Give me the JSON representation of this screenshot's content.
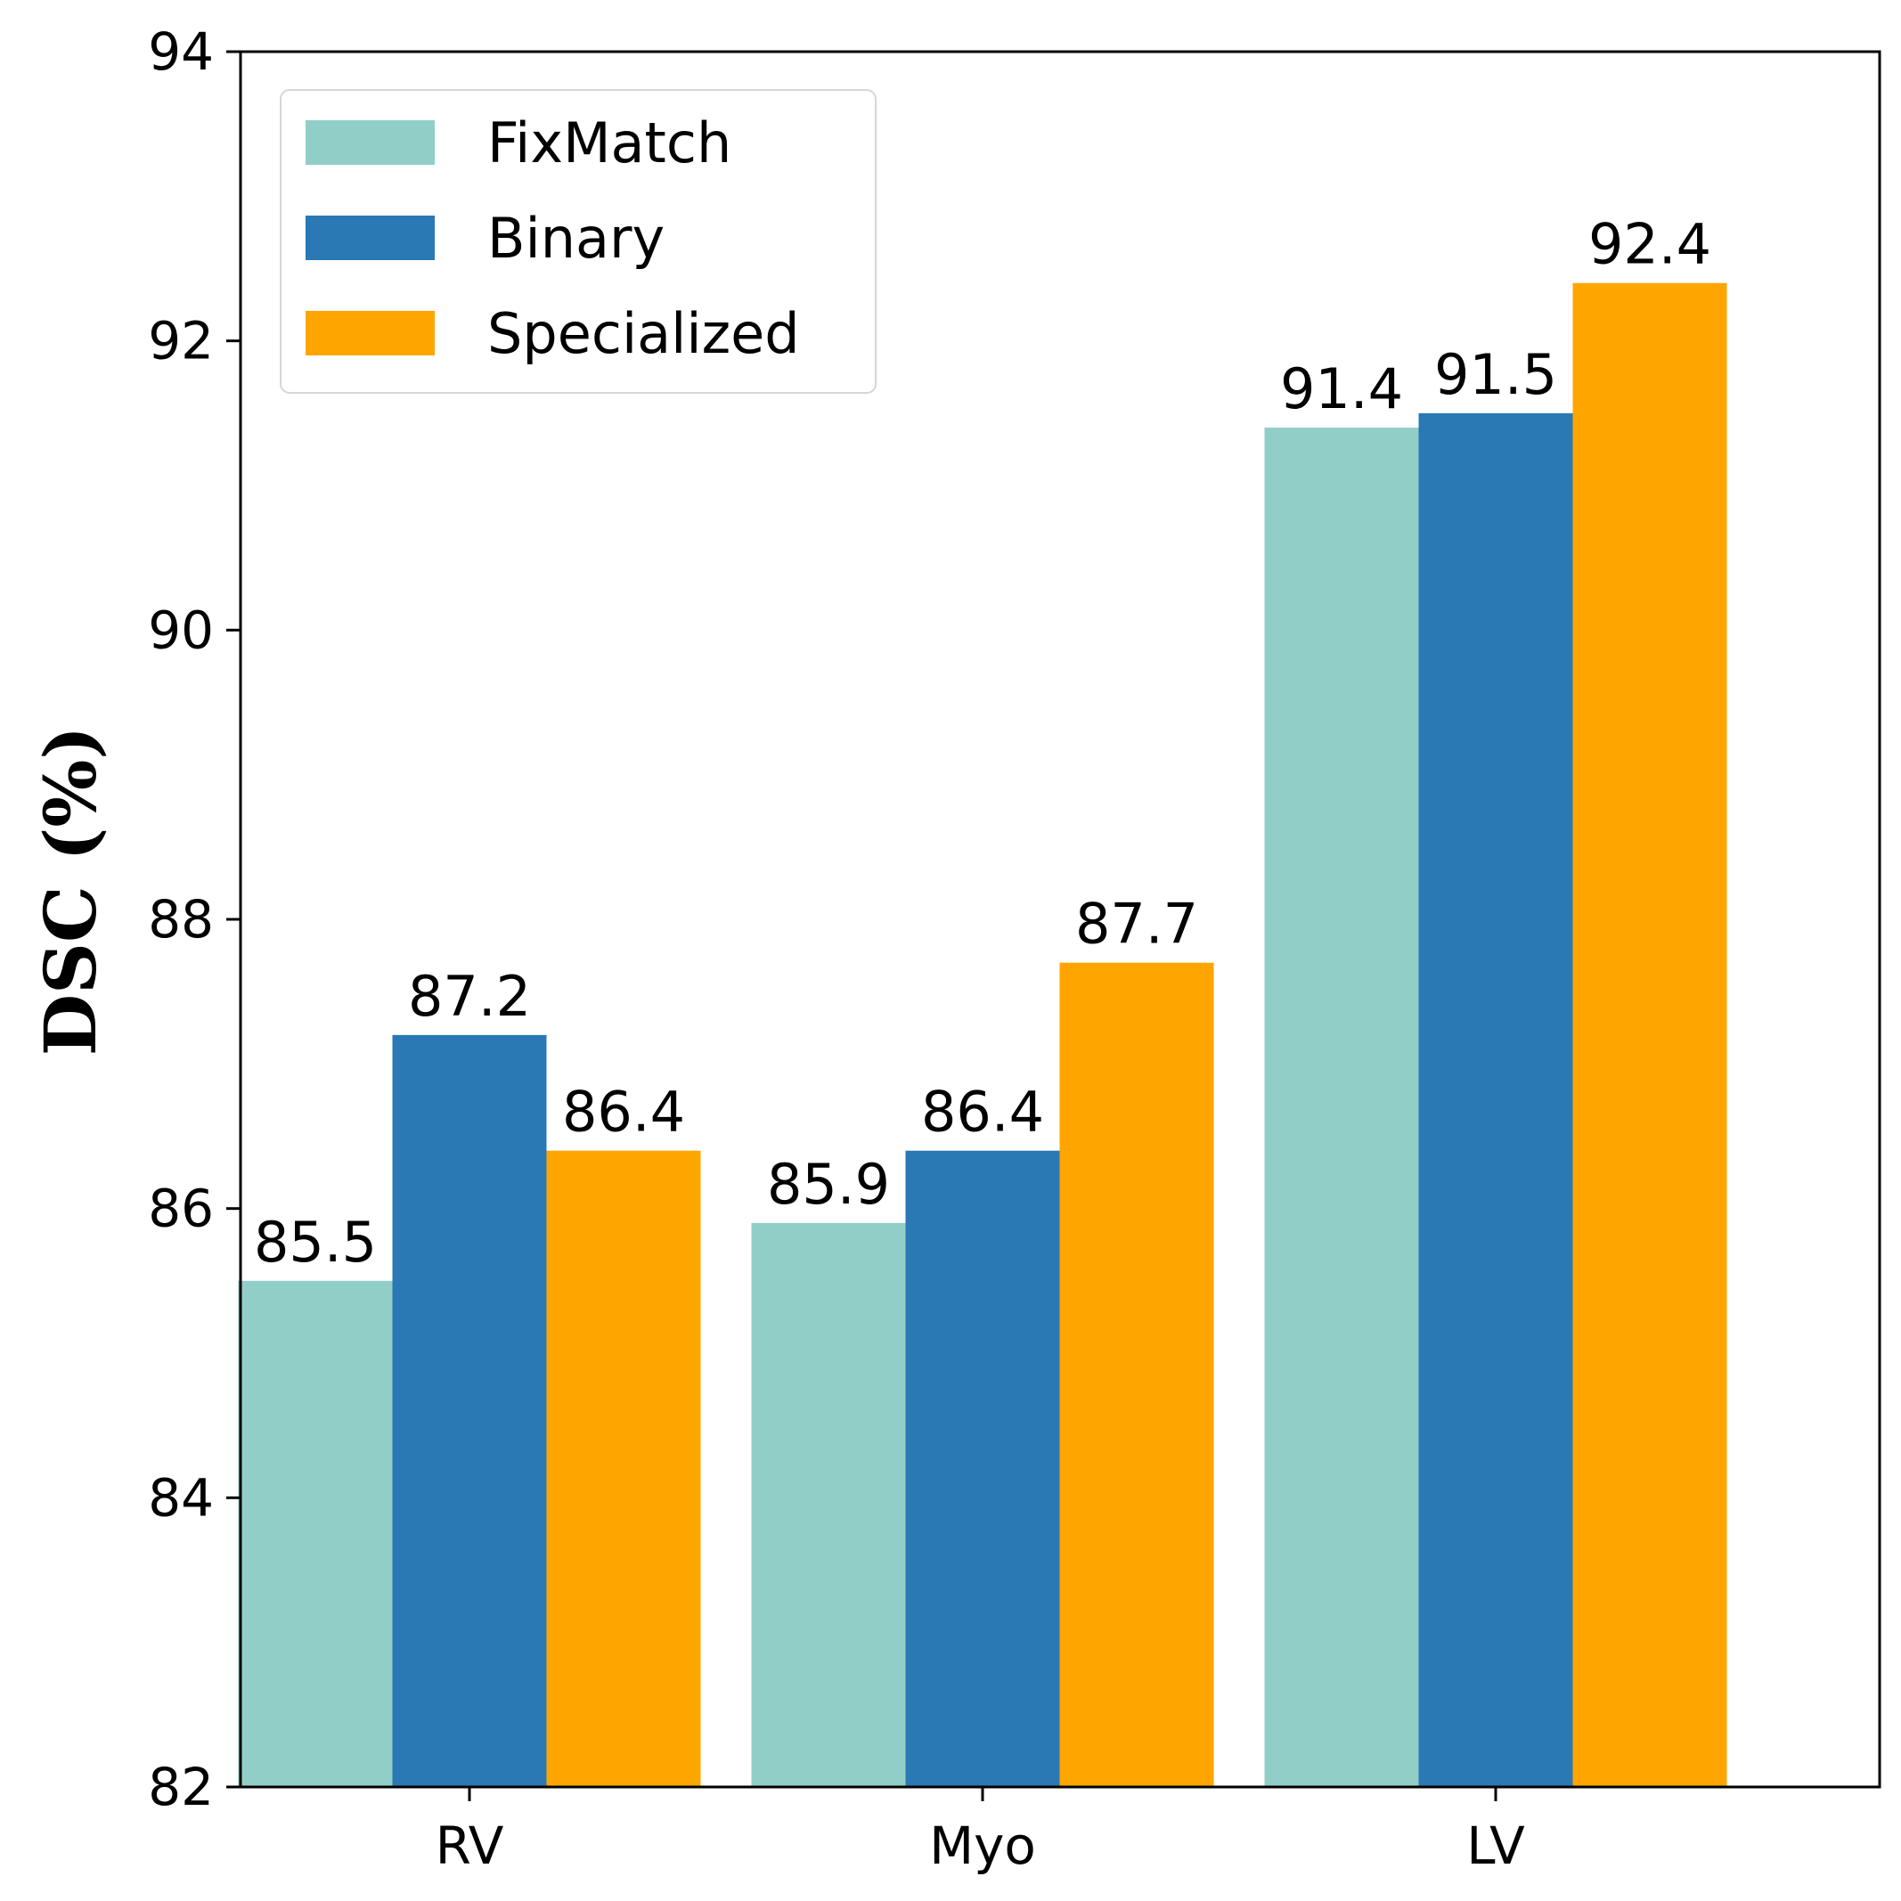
{
  "chart_data": {
    "type": "bar",
    "title": "",
    "xlabel": "",
    "ylabel": "DSC (%)",
    "ylim": [
      82,
      94
    ],
    "yticks": [
      82,
      84,
      86,
      88,
      90,
      92,
      94
    ],
    "categories": [
      "RV",
      "Myo",
      "LV"
    ],
    "series": [
      {
        "name": "FixMatch",
        "color": "#91cec7",
        "values": [
          85.5,
          85.9,
          91.4
        ]
      },
      {
        "name": "Binary",
        "color": "#2a78b4",
        "values": [
          87.2,
          86.4,
          91.5
        ]
      },
      {
        "name": "Specialized",
        "color": "#ffa500",
        "values": [
          86.4,
          87.7,
          92.4
        ]
      }
    ],
    "legend_position": "top-left",
    "grid": false
  }
}
